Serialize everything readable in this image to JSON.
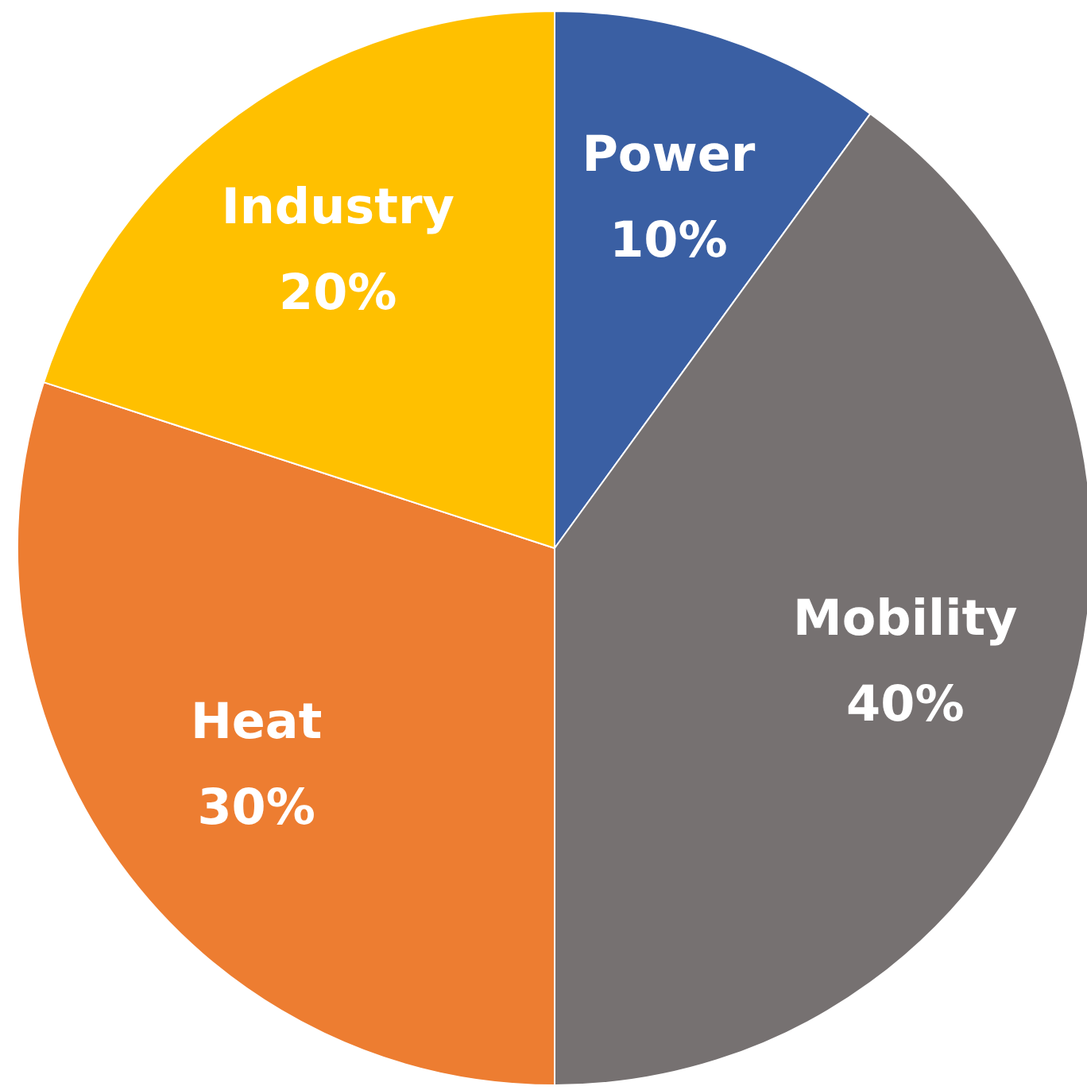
{
  "chart_data": {
    "type": "pie",
    "categories": [
      "Power",
      "Mobility",
      "Heat",
      "Industry"
    ],
    "values": [
      10,
      40,
      30,
      20
    ],
    "colors": [
      "#3a5fa3",
      "#767171",
      "#ed7d31",
      "#ffc000"
    ],
    "value_labels": [
      "10%",
      "40%",
      "30%",
      "20%"
    ],
    "legend": false
  }
}
